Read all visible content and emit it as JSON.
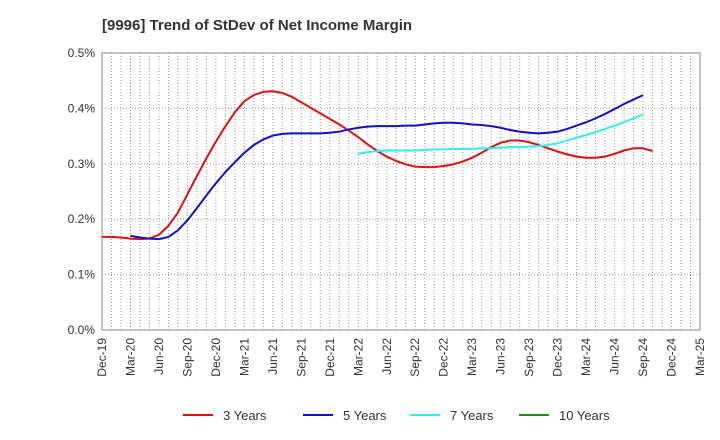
{
  "chart_data": {
    "type": "line",
    "title": "[9996]  Trend of StDev of Net Income Margin",
    "xlabel": "",
    "ylabel": "",
    "x_ticks": [
      "Dec-19",
      "Mar-20",
      "Jun-20",
      "Sep-20",
      "Dec-20",
      "Mar-21",
      "Jun-21",
      "Sep-21",
      "Dec-21",
      "Mar-22",
      "Jun-22",
      "Sep-22",
      "Dec-22",
      "Mar-23",
      "Jun-23",
      "Sep-23",
      "Dec-23",
      "Mar-24",
      "Jun-24",
      "Sep-24",
      "Dec-24",
      "Mar-25"
    ],
    "y_ticks": [
      "0.0%",
      "0.1%",
      "0.2%",
      "0.3%",
      "0.4%",
      "0.5%"
    ],
    "ylim": [
      0,
      0.5
    ],
    "grid": true,
    "legend_position": "bottom",
    "series": [
      {
        "name": "3 Years",
        "color": "#dd1111",
        "values": [
          [
            "Dec-19",
            0.168
          ],
          [
            "Jan-20",
            0.168
          ],
          [
            "Feb-20",
            0.167
          ],
          [
            "Mar-20",
            0.165
          ],
          [
            "Apr-20",
            0.164
          ],
          [
            "May-20",
            0.165
          ],
          [
            "Jun-20",
            0.172
          ],
          [
            "Jul-20",
            0.188
          ],
          [
            "Aug-20",
            0.212
          ],
          [
            "Sep-20",
            0.245
          ],
          [
            "Oct-20",
            0.278
          ],
          [
            "Nov-20",
            0.31
          ],
          [
            "Dec-20",
            0.34
          ],
          [
            "Jan-21",
            0.368
          ],
          [
            "Feb-21",
            0.393
          ],
          [
            "Mar-21",
            0.413
          ],
          [
            "Apr-21",
            0.424
          ],
          [
            "May-21",
            0.43
          ],
          [
            "Jun-21",
            0.431
          ],
          [
            "Jul-21",
            0.428
          ],
          [
            "Aug-21",
            0.421
          ],
          [
            "Sep-21",
            0.411
          ],
          [
            "Oct-21",
            0.401
          ],
          [
            "Nov-21",
            0.391
          ],
          [
            "Dec-21",
            0.381
          ],
          [
            "Jan-22",
            0.371
          ],
          [
            "Feb-22",
            0.36
          ],
          [
            "Mar-22",
            0.348
          ],
          [
            "Apr-22",
            0.335
          ],
          [
            "May-22",
            0.323
          ],
          [
            "Jun-22",
            0.313
          ],
          [
            "Jul-22",
            0.305
          ],
          [
            "Aug-22",
            0.299
          ],
          [
            "Sep-22",
            0.295
          ],
          [
            "Oct-22",
            0.294
          ],
          [
            "Nov-22",
            0.294
          ],
          [
            "Dec-22",
            0.296
          ],
          [
            "Jan-23",
            0.299
          ],
          [
            "Feb-23",
            0.304
          ],
          [
            "Mar-23",
            0.311
          ],
          [
            "Apr-23",
            0.32
          ],
          [
            "May-23",
            0.33
          ],
          [
            "Jun-23",
            0.338
          ],
          [
            "Jul-23",
            0.342
          ],
          [
            "Aug-23",
            0.342
          ],
          [
            "Sep-23",
            0.339
          ],
          [
            "Oct-23",
            0.334
          ],
          [
            "Nov-23",
            0.328
          ],
          [
            "Dec-23",
            0.322
          ],
          [
            "Jan-24",
            0.317
          ],
          [
            "Feb-24",
            0.313
          ],
          [
            "Mar-24",
            0.311
          ],
          [
            "Apr-24",
            0.311
          ],
          [
            "May-24",
            0.313
          ],
          [
            "Jun-24",
            0.318
          ],
          [
            "Jul-24",
            0.324
          ],
          [
            "Aug-24",
            0.328
          ],
          [
            "Sep-24",
            0.328
          ],
          [
            "Oct-24",
            0.323
          ]
        ]
      },
      {
        "name": "5 Years",
        "color": "#1111cc",
        "values": [
          [
            "Mar-20",
            0.17
          ],
          [
            "Apr-20",
            0.167
          ],
          [
            "May-20",
            0.165
          ],
          [
            "Jun-20",
            0.164
          ],
          [
            "Jul-20",
            0.168
          ],
          [
            "Aug-20",
            0.18
          ],
          [
            "Sep-20",
            0.198
          ],
          [
            "Oct-20",
            0.22
          ],
          [
            "Nov-20",
            0.243
          ],
          [
            "Dec-20",
            0.265
          ],
          [
            "Jan-21",
            0.285
          ],
          [
            "Feb-21",
            0.303
          ],
          [
            "Mar-21",
            0.32
          ],
          [
            "Apr-21",
            0.334
          ],
          [
            "May-21",
            0.344
          ],
          [
            "Jun-21",
            0.351
          ],
          [
            "Jul-21",
            0.354
          ],
          [
            "Aug-21",
            0.355
          ],
          [
            "Sep-21",
            0.355
          ],
          [
            "Oct-21",
            0.355
          ],
          [
            "Nov-21",
            0.355
          ],
          [
            "Dec-21",
            0.356
          ],
          [
            "Jan-22",
            0.358
          ],
          [
            "Feb-22",
            0.362
          ],
          [
            "Mar-22",
            0.365
          ],
          [
            "Apr-22",
            0.367
          ],
          [
            "May-22",
            0.368
          ],
          [
            "Jun-22",
            0.368
          ],
          [
            "Jul-22",
            0.368
          ],
          [
            "Aug-22",
            0.369
          ],
          [
            "Sep-22",
            0.369
          ],
          [
            "Oct-22",
            0.371
          ],
          [
            "Nov-22",
            0.373
          ],
          [
            "Dec-22",
            0.374
          ],
          [
            "Jan-23",
            0.374
          ],
          [
            "Feb-23",
            0.373
          ],
          [
            "Mar-23",
            0.371
          ],
          [
            "Apr-23",
            0.37
          ],
          [
            "May-23",
            0.368
          ],
          [
            "Jun-23",
            0.365
          ],
          [
            "Jul-23",
            0.361
          ],
          [
            "Aug-23",
            0.358
          ],
          [
            "Sep-23",
            0.356
          ],
          [
            "Oct-23",
            0.355
          ],
          [
            "Nov-23",
            0.356
          ],
          [
            "Dec-23",
            0.358
          ],
          [
            "Jan-24",
            0.363
          ],
          [
            "Feb-24",
            0.369
          ],
          [
            "Mar-24",
            0.375
          ],
          [
            "Apr-24",
            0.382
          ],
          [
            "May-24",
            0.39
          ],
          [
            "Jun-24",
            0.399
          ],
          [
            "Jul-24",
            0.408
          ],
          [
            "Aug-24",
            0.416
          ],
          [
            "Sep-24",
            0.424
          ]
        ]
      },
      {
        "name": "7 Years",
        "color": "#33eeee",
        "values": [
          [
            "Mar-22",
            0.318
          ],
          [
            "Apr-22",
            0.321
          ],
          [
            "May-22",
            0.323
          ],
          [
            "Jun-22",
            0.324
          ],
          [
            "Jul-22",
            0.324
          ],
          [
            "Aug-22",
            0.324
          ],
          [
            "Sep-22",
            0.324
          ],
          [
            "Oct-22",
            0.325
          ],
          [
            "Nov-22",
            0.326
          ],
          [
            "Dec-22",
            0.326
          ],
          [
            "Jan-23",
            0.327
          ],
          [
            "Feb-23",
            0.327
          ],
          [
            "Mar-23",
            0.327
          ],
          [
            "Apr-23",
            0.328
          ],
          [
            "May-23",
            0.328
          ],
          [
            "Jun-23",
            0.329
          ],
          [
            "Jul-23",
            0.33
          ],
          [
            "Aug-23",
            0.33
          ],
          [
            "Sep-23",
            0.331
          ],
          [
            "Oct-23",
            0.332
          ],
          [
            "Nov-23",
            0.334
          ],
          [
            "Dec-23",
            0.337
          ],
          [
            "Jan-24",
            0.342
          ],
          [
            "Feb-24",
            0.347
          ],
          [
            "Mar-24",
            0.352
          ],
          [
            "Apr-24",
            0.357
          ],
          [
            "May-24",
            0.363
          ],
          [
            "Jun-24",
            0.369
          ],
          [
            "Jul-24",
            0.375
          ],
          [
            "Aug-24",
            0.382
          ],
          [
            "Sep-24",
            0.389
          ]
        ]
      },
      {
        "name": "10 Years",
        "color": "#228822",
        "values": []
      }
    ]
  }
}
